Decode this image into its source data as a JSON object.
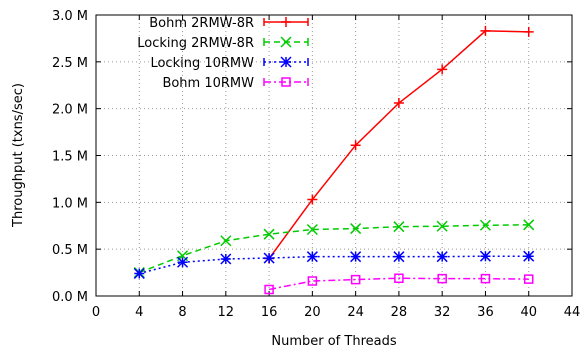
{
  "chart_data": {
    "type": "line",
    "title": "",
    "xlabel": "Number of Threads",
    "ylabel": "Throughput (txns/sec)",
    "xlim": [
      0,
      44
    ],
    "ylim": [
      0,
      3000000
    ],
    "x_ticks": [
      0,
      4,
      8,
      12,
      16,
      20,
      24,
      28,
      32,
      36,
      40,
      44
    ],
    "x_tick_labels": [
      "0",
      "4",
      "8",
      "12",
      "16",
      "20",
      "24",
      "28",
      "32",
      "36",
      "40",
      "44"
    ],
    "y_ticks": [
      0,
      500000,
      1000000,
      1500000,
      2000000,
      2500000,
      3000000
    ],
    "y_tick_labels": [
      "0.0 M",
      "0.5 M",
      "1.0 M",
      "1.5 M",
      "2.0 M",
      "2.5 M",
      "3.0 M"
    ],
    "grid": true,
    "legend_position": "top-left",
    "series": [
      {
        "name": "Bohm 2RMW-8R",
        "color": "#ff0000",
        "marker": "plus",
        "dash": "solid",
        "x": [
          16,
          20,
          24,
          28,
          32,
          36,
          40
        ],
        "y": [
          400000,
          1030000,
          1610000,
          2060000,
          2420000,
          2830000,
          2820000
        ]
      },
      {
        "name": "Locking 2RMW-8R",
        "color": "#00cc00",
        "marker": "cross",
        "dash": "dashed",
        "x": [
          4,
          8,
          12,
          16,
          20,
          24,
          28,
          32,
          36,
          40
        ],
        "y": [
          250000,
          430000,
          590000,
          660000,
          710000,
          720000,
          740000,
          745000,
          755000,
          760000
        ]
      },
      {
        "name": "Locking 10RMW",
        "color": "#0000ff",
        "marker": "star",
        "dash": "dotted",
        "x": [
          4,
          8,
          12,
          16,
          20,
          24,
          28,
          32,
          36,
          40
        ],
        "y": [
          240000,
          360000,
          395000,
          405000,
          420000,
          420000,
          420000,
          420000,
          425000,
          425000
        ]
      },
      {
        "name": "Bohm 10RMW",
        "color": "#ff00ff",
        "marker": "square",
        "dash": "dashdot",
        "x": [
          16,
          20,
          24,
          28,
          32,
          36,
          40
        ],
        "y": [
          70000,
          160000,
          175000,
          190000,
          185000,
          185000,
          180000
        ]
      }
    ]
  }
}
